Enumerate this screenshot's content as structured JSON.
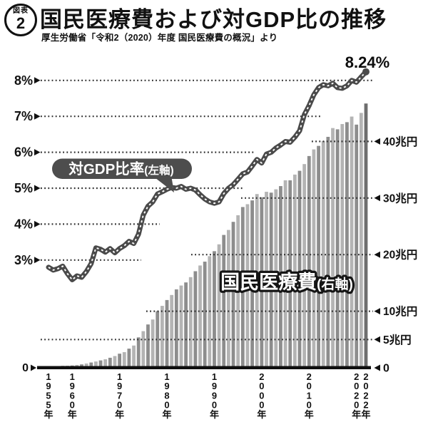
{
  "figure_badge": {
    "top": "図表",
    "number": "2"
  },
  "title": "国民医療費および対GDP比の推移",
  "source": "厚生労働省「令和2（2020）年度 国民医療費の概況」より",
  "chart_data": {
    "type": "combo-bar-line",
    "start_year": 1955,
    "end_year": 2022,
    "years": [
      1955,
      1956,
      1957,
      1958,
      1959,
      1960,
      1961,
      1962,
      1963,
      1964,
      1965,
      1966,
      1967,
      1968,
      1969,
      1970,
      1971,
      1972,
      1973,
      1974,
      1975,
      1976,
      1977,
      1978,
      1979,
      1980,
      1981,
      1982,
      1983,
      1984,
      1985,
      1986,
      1987,
      1988,
      1989,
      1990,
      1991,
      1992,
      1993,
      1994,
      1995,
      1996,
      1997,
      1998,
      1999,
      2000,
      2001,
      2002,
      2003,
      2004,
      2005,
      2006,
      2007,
      2008,
      2009,
      2010,
      2011,
      2012,
      2013,
      2014,
      2015,
      2016,
      2017,
      2018,
      2019,
      2020,
      2021,
      2022
    ],
    "bar_series": {
      "name": "国民医療費",
      "axis": "right",
      "unit": "兆円",
      "values": [
        0.24,
        0.28,
        0.31,
        0.35,
        0.38,
        0.41,
        0.51,
        0.61,
        0.76,
        0.94,
        1.12,
        1.31,
        1.51,
        1.78,
        2.08,
        2.5,
        2.77,
        3.39,
        3.94,
        5.38,
        6.48,
        7.66,
        8.54,
        10.0,
        10.95,
        11.98,
        12.87,
        13.86,
        14.54,
        15.09,
        16.02,
        17.07,
        18.08,
        18.76,
        19.73,
        20.61,
        21.82,
        23.48,
        24.36,
        25.79,
        26.96,
        28.41,
        28.91,
        29.58,
        30.7,
        30.14,
        31.1,
        30.95,
        31.54,
        32.11,
        33.13,
        33.13,
        34.14,
        34.81,
        36.0,
        37.42,
        38.59,
        39.21,
        40.06,
        40.81,
        42.36,
        42.14,
        43.07,
        43.4,
        44.39,
        42.97,
        45.04,
        46.7
      ]
    },
    "line_series": {
      "name": "対GDP比率",
      "axis": "left",
      "unit": "%",
      "values": [
        2.8,
        2.72,
        2.76,
        2.83,
        2.62,
        2.45,
        2.56,
        2.52,
        2.68,
        2.9,
        3.34,
        3.3,
        3.22,
        3.32,
        3.2,
        3.32,
        3.4,
        3.52,
        3.46,
        3.72,
        4.25,
        4.5,
        4.62,
        4.84,
        4.9,
        4.97,
        5.02,
        5.0,
        5.05,
        4.97,
        5.0,
        4.95,
        4.82,
        4.7,
        4.62,
        4.58,
        4.62,
        4.85,
        5.0,
        5.1,
        5.25,
        5.4,
        5.45,
        5.62,
        5.8,
        5.7,
        5.95,
        6.0,
        6.12,
        6.2,
        6.3,
        6.28,
        6.42,
        6.6,
        7.05,
        7.3,
        7.6,
        7.8,
        7.88,
        7.85,
        7.92,
        7.8,
        7.78,
        7.85,
        8.0,
        7.95,
        8.1,
        8.24
      ]
    },
    "left_axis": {
      "tick_labels": [
        "8%",
        "7%",
        "6%",
        "5%",
        "4%",
        "3%"
      ],
      "tick_values": [
        8,
        7,
        6,
        5,
        4,
        3
      ],
      "zero_label": "0",
      "range": [
        0,
        8.6
      ]
    },
    "right_axis": {
      "tick_labels": [
        "40兆円",
        "30兆円",
        "20兆円",
        "10兆円",
        "5兆円"
      ],
      "tick_values": [
        40,
        30,
        20,
        10,
        5
      ],
      "zero_label": "0",
      "range": [
        0,
        43.5
      ]
    },
    "x_axis": {
      "ticks": [
        {
          "label": "1955年",
          "year": 1955
        },
        {
          "label": "1960年",
          "year": 1960
        },
        {
          "label": "1970年",
          "year": 1970
        },
        {
          "label": "1980年",
          "year": 1980
        },
        {
          "label": "1990年",
          "year": 1990
        },
        {
          "label": "2000年",
          "year": 2000
        },
        {
          "label": "2010年",
          "year": 2010
        },
        {
          "label": "2020年",
          "year": 2020
        },
        {
          "label": "2022年",
          "year": 2022
        }
      ]
    },
    "annotations": {
      "end_value_label": "8.24%",
      "line_callout_main": "対GDP比率",
      "line_callout_sub": "(左軸)",
      "bar_callout_main": "国民医療費",
      "bar_callout_sub": "(右軸)"
    },
    "legend_position": "inline-callouts",
    "grid": "dotted"
  },
  "colors": {
    "bar_light": "#b4b4b4",
    "bar_dark": "#8d8d8d",
    "bar_last": "#6e6e6e",
    "line": "#4a4a4a",
    "line_dash": "#ffffff",
    "grid": "#2f2f2f",
    "text": "#111111",
    "callout_bg": "#4d4d4d",
    "callout_text": "#ffffff"
  }
}
